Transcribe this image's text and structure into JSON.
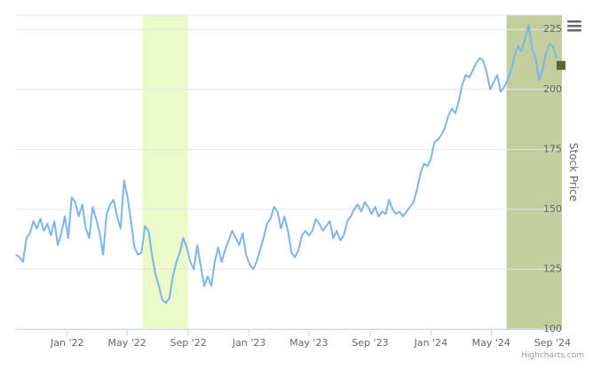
{
  "chart_data": {
    "type": "line",
    "ylabel": "Stock Price",
    "ylim": [
      100,
      231
    ],
    "y_ticks": [
      100,
      125,
      150,
      175,
      200,
      225
    ],
    "x_ticks": [
      {
        "date": "2022-01-01",
        "label": "Jan '22"
      },
      {
        "date": "2022-05-01",
        "label": "May '22"
      },
      {
        "date": "2022-09-01",
        "label": "Sep '22"
      },
      {
        "date": "2023-01-01",
        "label": "Jan '23"
      },
      {
        "date": "2023-05-01",
        "label": "May '23"
      },
      {
        "date": "2023-09-01",
        "label": "Sep '23"
      },
      {
        "date": "2024-01-01",
        "label": "Jan '24"
      },
      {
        "date": "2024-05-01",
        "label": "May '24"
      },
      {
        "date": "2024-09-01",
        "label": "Sep '24"
      }
    ],
    "xlim": [
      "2021-09-20",
      "2024-09-20"
    ],
    "grid": true,
    "legend": "none",
    "series": [
      {
        "color": "#7cb5ec",
        "points": [
          [
            "2021-09-20",
            131
          ],
          [
            "2021-09-27",
            130
          ],
          [
            "2021-10-04",
            128
          ],
          [
            "2021-10-11",
            138
          ],
          [
            "2021-10-18",
            140
          ],
          [
            "2021-10-25",
            145
          ],
          [
            "2021-11-01",
            142
          ],
          [
            "2021-11-08",
            146
          ],
          [
            "2021-11-15",
            141
          ],
          [
            "2021-11-22",
            144
          ],
          [
            "2021-11-29",
            139
          ],
          [
            "2021-12-06",
            145
          ],
          [
            "2021-12-13",
            135
          ],
          [
            "2021-12-20",
            140
          ],
          [
            "2021-12-27",
            147
          ],
          [
            "2022-01-03",
            138
          ],
          [
            "2022-01-10",
            155
          ],
          [
            "2022-01-17",
            153
          ],
          [
            "2022-01-24",
            147
          ],
          [
            "2022-01-31",
            152
          ],
          [
            "2022-02-07",
            142
          ],
          [
            "2022-02-14",
            138
          ],
          [
            "2022-02-21",
            151
          ],
          [
            "2022-02-28",
            146
          ],
          [
            "2022-03-07",
            140
          ],
          [
            "2022-03-14",
            131
          ],
          [
            "2022-03-21",
            148
          ],
          [
            "2022-03-28",
            152
          ],
          [
            "2022-04-04",
            154
          ],
          [
            "2022-04-11",
            147
          ],
          [
            "2022-04-18",
            142
          ],
          [
            "2022-04-25",
            162
          ],
          [
            "2022-05-02",
            155
          ],
          [
            "2022-05-09",
            145
          ],
          [
            "2022-05-16",
            134
          ],
          [
            "2022-05-23",
            131
          ],
          [
            "2022-05-30",
            132
          ],
          [
            "2022-06-06",
            143
          ],
          [
            "2022-06-13",
            141
          ],
          [
            "2022-06-20",
            131
          ],
          [
            "2022-06-27",
            123
          ],
          [
            "2022-07-04",
            118
          ],
          [
            "2022-07-11",
            112
          ],
          [
            "2022-07-18",
            111
          ],
          [
            "2022-07-25",
            113
          ],
          [
            "2022-08-01",
            122
          ],
          [
            "2022-08-08",
            128
          ],
          [
            "2022-08-15",
            132
          ],
          [
            "2022-08-22",
            138
          ],
          [
            "2022-08-29",
            134
          ],
          [
            "2022-09-05",
            128
          ],
          [
            "2022-09-12",
            125
          ],
          [
            "2022-09-19",
            135
          ],
          [
            "2022-09-26",
            126
          ],
          [
            "2022-10-03",
            118
          ],
          [
            "2022-10-10",
            122
          ],
          [
            "2022-10-17",
            118
          ],
          [
            "2022-10-24",
            128
          ],
          [
            "2022-10-31",
            134
          ],
          [
            "2022-11-07",
            128
          ],
          [
            "2022-11-14",
            133
          ],
          [
            "2022-11-21",
            137
          ],
          [
            "2022-11-28",
            141
          ],
          [
            "2022-12-05",
            138
          ],
          [
            "2022-12-12",
            135
          ],
          [
            "2022-12-19",
            140
          ],
          [
            "2022-12-26",
            131
          ],
          [
            "2023-01-02",
            127
          ],
          [
            "2023-01-09",
            125
          ],
          [
            "2023-01-16",
            128
          ],
          [
            "2023-01-23",
            133
          ],
          [
            "2023-01-30",
            138
          ],
          [
            "2023-02-06",
            144
          ],
          [
            "2023-02-13",
            146
          ],
          [
            "2023-02-20",
            151
          ],
          [
            "2023-02-27",
            149
          ],
          [
            "2023-03-06",
            142
          ],
          [
            "2023-03-13",
            147
          ],
          [
            "2023-03-20",
            141
          ],
          [
            "2023-03-27",
            132
          ],
          [
            "2023-04-03",
            130
          ],
          [
            "2023-04-10",
            133
          ],
          [
            "2023-04-17",
            139
          ],
          [
            "2023-04-24",
            141
          ],
          [
            "2023-05-01",
            139
          ],
          [
            "2023-05-08",
            141
          ],
          [
            "2023-05-15",
            146
          ],
          [
            "2023-05-22",
            144
          ],
          [
            "2023-05-29",
            141
          ],
          [
            "2023-06-05",
            143
          ],
          [
            "2023-06-12",
            145
          ],
          [
            "2023-06-19",
            138
          ],
          [
            "2023-06-26",
            141
          ],
          [
            "2023-07-03",
            137
          ],
          [
            "2023-07-10",
            139
          ],
          [
            "2023-07-17",
            145
          ],
          [
            "2023-07-24",
            147
          ],
          [
            "2023-07-31",
            150
          ],
          [
            "2023-08-07",
            152
          ],
          [
            "2023-08-14",
            149
          ],
          [
            "2023-08-21",
            153
          ],
          [
            "2023-08-28",
            151
          ],
          [
            "2023-09-04",
            148
          ],
          [
            "2023-09-11",
            151
          ],
          [
            "2023-09-18",
            147
          ],
          [
            "2023-09-25",
            149
          ],
          [
            "2023-10-02",
            148
          ],
          [
            "2023-10-09",
            154
          ],
          [
            "2023-10-16",
            150
          ],
          [
            "2023-10-23",
            148
          ],
          [
            "2023-10-30",
            149
          ],
          [
            "2023-11-06",
            147
          ],
          [
            "2023-11-13",
            149
          ],
          [
            "2023-11-20",
            151
          ],
          [
            "2023-11-27",
            153
          ],
          [
            "2023-12-04",
            158
          ],
          [
            "2023-12-11",
            165
          ],
          [
            "2023-12-18",
            169
          ],
          [
            "2023-12-25",
            168
          ],
          [
            "2024-01-01",
            171
          ],
          [
            "2024-01-08",
            178
          ],
          [
            "2024-01-15",
            179
          ],
          [
            "2024-01-22",
            181
          ],
          [
            "2024-01-29",
            184
          ],
          [
            "2024-02-05",
            189
          ],
          [
            "2024-02-12",
            192
          ],
          [
            "2024-02-19",
            190
          ],
          [
            "2024-02-26",
            195
          ],
          [
            "2024-03-04",
            202
          ],
          [
            "2024-03-11",
            206
          ],
          [
            "2024-03-18",
            205
          ],
          [
            "2024-03-25",
            208
          ],
          [
            "2024-04-01",
            211
          ],
          [
            "2024-04-08",
            213
          ],
          [
            "2024-04-15",
            212
          ],
          [
            "2024-04-22",
            207
          ],
          [
            "2024-04-29",
            200
          ],
          [
            "2024-05-06",
            203
          ],
          [
            "2024-05-13",
            206
          ],
          [
            "2024-05-20",
            199
          ],
          [
            "2024-05-27",
            201
          ],
          [
            "2024-06-03",
            204
          ],
          [
            "2024-06-10",
            208
          ],
          [
            "2024-06-17",
            214
          ],
          [
            "2024-06-24",
            218
          ],
          [
            "2024-07-01",
            216
          ],
          [
            "2024-07-08",
            221
          ],
          [
            "2024-07-15",
            227
          ],
          [
            "2024-07-22",
            217
          ],
          [
            "2024-07-29",
            213
          ],
          [
            "2024-08-05",
            204
          ],
          [
            "2024-08-12",
            208
          ],
          [
            "2024-08-19",
            215
          ],
          [
            "2024-08-26",
            219
          ],
          [
            "2024-09-02",
            218
          ],
          [
            "2024-09-09",
            213
          ]
        ]
      }
    ],
    "plot_bands": [
      {
        "from": "2022-06-01",
        "to": "2022-08-31",
        "color": "#eafac8"
      },
      {
        "from": "2024-06-01",
        "to": "2024-09-20",
        "color": "#c2ce9e"
      }
    ],
    "current_marker": {
      "value": 210,
      "color": "#556b2f"
    }
  },
  "ui": {
    "menu_icon": "hamburger-icon",
    "credits": "Highcharts.com"
  }
}
